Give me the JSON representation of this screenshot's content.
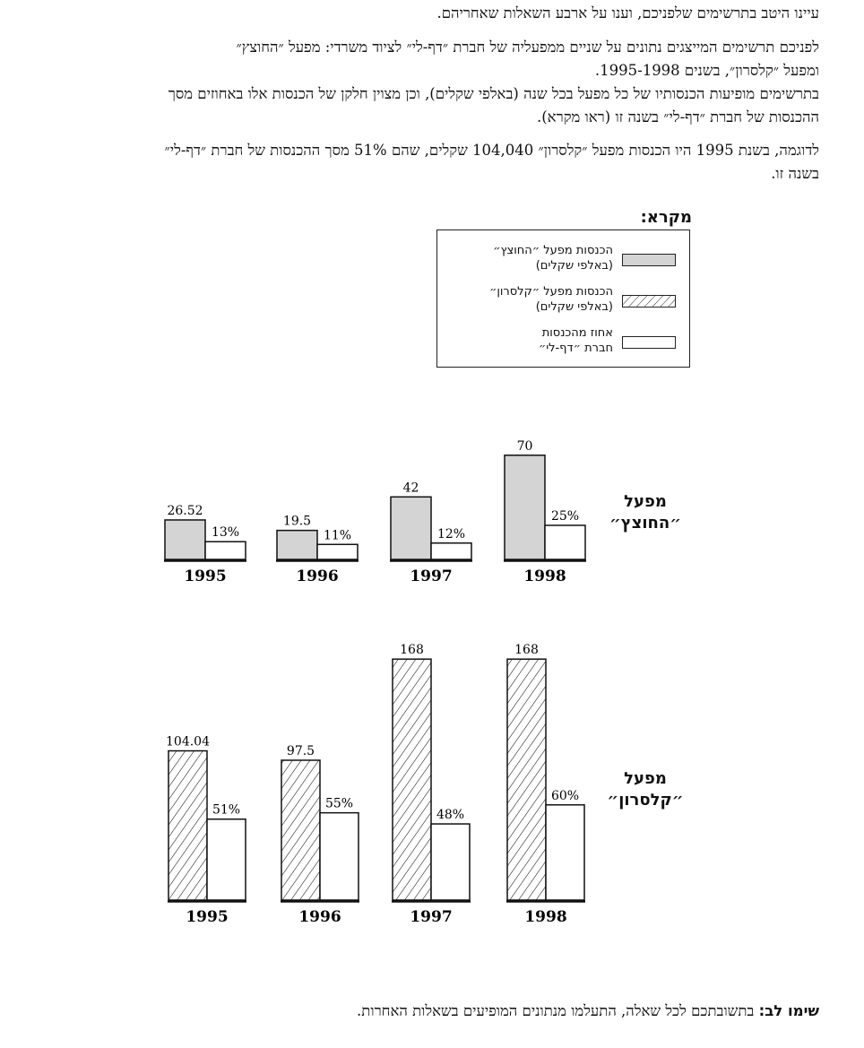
{
  "instructions": {
    "p1": "עיינו היטב בתרשימים שלפניכם, וענו על ארבע השאלות שאחריהם.",
    "p2_line1": "לפניכם תרשימים המייצגים נתונים על שניים ממפעליה של חברת ״דף-לי״ לציוד משרדי: מפעל ״החוצץ״",
    "p2_line2": "ומפעל ״קלסרון״, בשנים 1995-1998.",
    "p3_line1": "בתרשימים מופיעות הכנסותיו של כל מפעל בכל שנה (באלפי שקלים), וכן מצוין חלקן של הכנסות אלו באחוזים מסך",
    "p3_line2": "ההכנסות של חברת ״דף-לי״ בשנה זו (ראו מקרא).",
    "p4_line1": "לדוגמה, בשנת 1995 היו הכנסות מפעל ״קלסרון״ 104,040 שקלים, שהם 51% מסך ההכנסות של חברת ״דף-לי״",
    "p4_line2": "בשנה זו."
  },
  "legend": {
    "title": "מקרא:",
    "items": [
      {
        "line1": "הכנסות מפעל ״החוצץ״",
        "line2": "(באלפי שקלים)",
        "swatch": "gray"
      },
      {
        "line1": "הכנסות מפעל ״קלסרון״",
        "line2": "(באלפי שקלים)",
        "swatch": "hatched"
      },
      {
        "line1": "אחוז מהכנסות",
        "line2": "חברת ״דף-לי״",
        "swatch": "white"
      }
    ]
  },
  "row_labels": {
    "factory1": {
      "line1": "מפעל",
      "line2": "״החוצץ״"
    },
    "factory2": {
      "line1": "מפעל",
      "line2": "״קלסרון״"
    }
  },
  "colors": {
    "gray_fill": "#d4d4d4",
    "stroke": "#111111"
  },
  "note": {
    "bold": "שימו לב:",
    "text": " בתשובתכם לכל שאלה, התעלמו מנתונים המופיעים בשאלות האחרות."
  },
  "chart_data": [
    {
      "type": "bar",
      "title": "",
      "row_label": "מפעל ״החוצץ״",
      "categories": [
        "1995",
        "1996",
        "1997",
        "1998"
      ],
      "series": [
        {
          "name": "הכנסות מפעל ״החוצץ״ (באלפי שקלים)",
          "values": [
            26.52,
            19.5,
            42,
            70
          ],
          "labels": [
            "26.52",
            "19.5",
            "42",
            "70"
          ],
          "fill": "gray"
        },
        {
          "name": "אחוז מהכנסות חברת ״דף-לי״",
          "values": [
            13,
            11,
            12,
            25
          ],
          "labels": [
            "13%",
            "11%",
            "12%",
            "25%"
          ],
          "fill": "white"
        }
      ]
    },
    {
      "type": "bar",
      "title": "",
      "row_label": "מפעל ״קלסרון״",
      "categories": [
        "1995",
        "1996",
        "1997",
        "1998"
      ],
      "series": [
        {
          "name": "הכנסות מפעל ״קלסרון״ (באלפי שקלים)",
          "values": [
            104.04,
            97.5,
            168,
            168
          ],
          "labels": [
            "104.04",
            "97.5",
            "168",
            "168"
          ],
          "fill": "hatched"
        },
        {
          "name": "אחוז מהכנסות חברת ״דף-לי״",
          "values": [
            51,
            55,
            48,
            60
          ],
          "labels": [
            "51%",
            "55%",
            "48%",
            "60%"
          ],
          "fill": "white"
        }
      ]
    }
  ]
}
